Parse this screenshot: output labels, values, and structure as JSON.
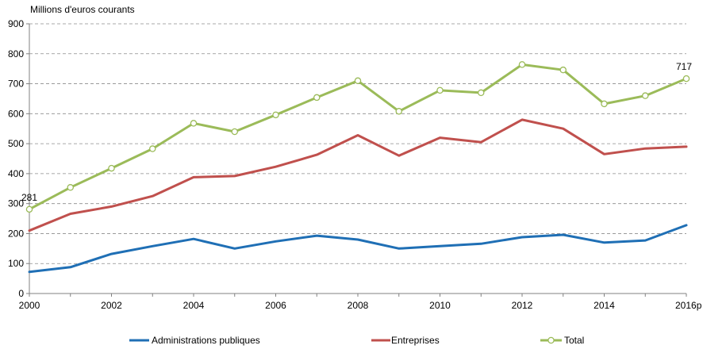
{
  "chart_data": {
    "type": "line",
    "title": "",
    "ylabel": "Millions d'euros courants",
    "xlabel": "",
    "x": [
      2000,
      2001,
      2002,
      2003,
      2004,
      2005,
      2006,
      2007,
      2008,
      2009,
      2010,
      2011,
      2012,
      2013,
      2014,
      2015,
      2016
    ],
    "x_ticks": [
      {
        "value": 2000,
        "label": "2000"
      },
      {
        "value": 2002,
        "label": "2002"
      },
      {
        "value": 2004,
        "label": "2004"
      },
      {
        "value": 2006,
        "label": "2006"
      },
      {
        "value": 2008,
        "label": "2008"
      },
      {
        "value": 2010,
        "label": "2010"
      },
      {
        "value": 2012,
        "label": "2012"
      },
      {
        "value": 2014,
        "label": "2014"
      },
      {
        "value": 2016,
        "label": "2016p"
      }
    ],
    "xlim": [
      2000,
      2016
    ],
    "ylim": [
      0,
      900
    ],
    "y_ticks": [
      0,
      100,
      200,
      300,
      400,
      500,
      600,
      700,
      800,
      900
    ],
    "grid": "horizontal dashed",
    "legend_position": "bottom",
    "series": [
      {
        "name": "Administrations publiques",
        "color": "#1f6fb5",
        "markers": false,
        "values": [
          72,
          88,
          132,
          158,
          182,
          150,
          174,
          193,
          180,
          150,
          158,
          166,
          188,
          196,
          170,
          177,
          228
        ]
      },
      {
        "name": "Entreprises",
        "color": "#c0504d",
        "markers": false,
        "values": [
          210,
          266,
          290,
          325,
          388,
          392,
          423,
          463,
          528,
          460,
          520,
          505,
          580,
          550,
          465,
          484,
          490
        ]
      },
      {
        "name": "Total",
        "color": "#9bbb59",
        "markers": true,
        "values": [
          281,
          354,
          418,
          483,
          568,
          540,
          596,
          654,
          710,
          608,
          678,
          670,
          764,
          746,
          633,
          660,
          717
        ]
      }
    ],
    "annotations": [
      {
        "series": 2,
        "index": 0,
        "text": "281"
      },
      {
        "series": 2,
        "index": 16,
        "text": "717"
      }
    ]
  }
}
